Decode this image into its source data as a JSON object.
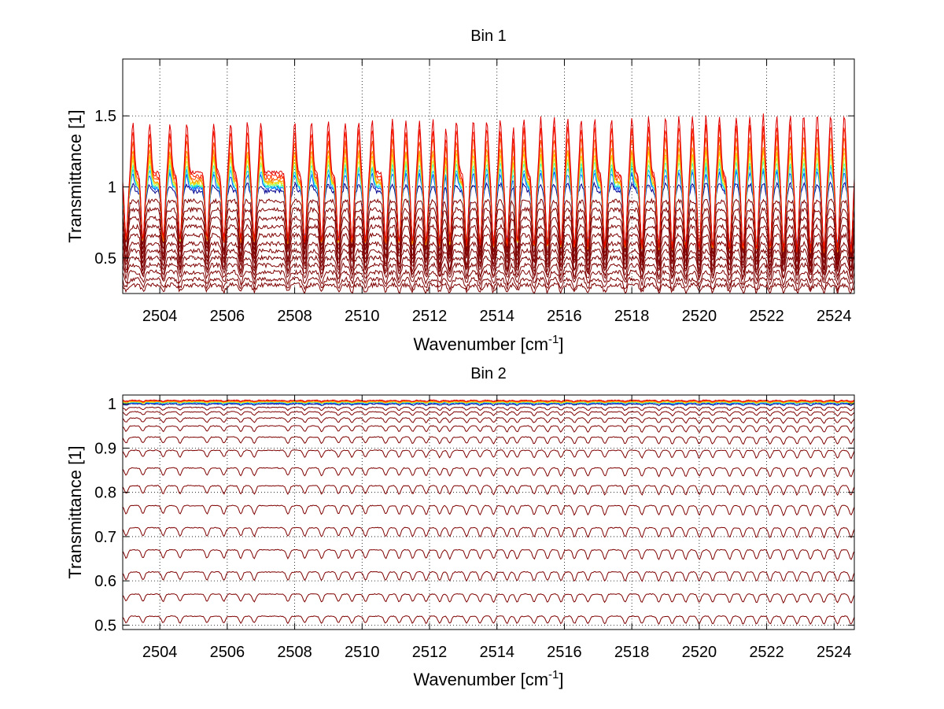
{
  "chart_data": [
    {
      "type": "line",
      "title": "Bin 1",
      "xlabel": "Wavenumber [cm",
      "xlabel_sup": "-1",
      "xlabel_end": "]",
      "ylabel": "Transmittance [1]",
      "xlim": [
        2502.9,
        2524.6
      ],
      "ylim": [
        0.25,
        1.9
      ],
      "xticks": [
        2504,
        2506,
        2508,
        2510,
        2512,
        2514,
        2516,
        2518,
        2520,
        2522,
        2524
      ],
      "yticks": [
        0.5,
        1,
        1.5
      ],
      "ytick_labels": [
        "0.5",
        "1",
        "1.5"
      ],
      "grid": "dotted",
      "legend": "none",
      "absorption_lines": [
        2503.0,
        2503.5,
        2504.1,
        2504.6,
        2505.4,
        2505.9,
        2506.4,
        2506.8,
        2507.8,
        2508.3,
        2508.8,
        2509.3,
        2509.7,
        2510.1,
        2510.7,
        2511.1,
        2511.5,
        2511.9,
        2512.3,
        2512.6,
        2513.1,
        2513.5,
        2513.9,
        2514.3,
        2514.6,
        2515.1,
        2515.5,
        2515.9,
        2516.3,
        2516.7,
        2517.2,
        2517.8,
        2518.3,
        2518.8,
        2519.2,
        2519.6,
        2520.0,
        2520.4,
        2520.9,
        2521.3,
        2521.7,
        2522.1,
        2522.5,
        2522.9,
        2523.3,
        2523.7,
        2524.1,
        2524.5
      ],
      "series": [
        {
          "baseline": 0.31,
          "depth": 0.06,
          "color": "#7f0000"
        },
        {
          "baseline": 0.35,
          "depth": 0.08,
          "color": "#7f0000"
        },
        {
          "baseline": 0.4,
          "depth": 0.1,
          "color": "#7f0000"
        },
        {
          "baseline": 0.45,
          "depth": 0.12,
          "color": "#7f0000"
        },
        {
          "baseline": 0.5,
          "depth": 0.15,
          "color": "#7f0000"
        },
        {
          "baseline": 0.55,
          "depth": 0.18,
          "color": "#7f0000"
        },
        {
          "baseline": 0.6,
          "depth": 0.22,
          "color": "#7f0000"
        },
        {
          "baseline": 0.66,
          "depth": 0.26,
          "color": "#7f0000"
        },
        {
          "baseline": 0.72,
          "depth": 0.3,
          "color": "#7f0000"
        },
        {
          "baseline": 0.78,
          "depth": 0.34,
          "color": "#7f0000"
        },
        {
          "baseline": 0.84,
          "depth": 0.38,
          "color": "#7f0000"
        },
        {
          "baseline": 0.9,
          "depth": 0.42,
          "color": "#7f0000"
        },
        {
          "baseline": 0.97,
          "depth": 0.46,
          "color": "#00008f"
        },
        {
          "baseline": 0.99,
          "depth": 0.48,
          "color": "#0050ff"
        },
        {
          "baseline": 1.0,
          "depth": 0.5,
          "color": "#00c0ff"
        },
        {
          "baseline": 1.01,
          "depth": 0.52,
          "color": "#40ffbf"
        },
        {
          "baseline": 1.02,
          "depth": 0.54,
          "color": "#bfff40"
        },
        {
          "baseline": 1.03,
          "depth": 0.56,
          "color": "#ffd000"
        },
        {
          "baseline": 1.04,
          "depth": 0.58,
          "color": "#ff9000"
        },
        {
          "baseline": 1.06,
          "depth": 0.6,
          "color": "#ff5000"
        },
        {
          "baseline": 1.08,
          "depth": 0.62,
          "color": "#ff2000"
        },
        {
          "baseline": 1.1,
          "depth": 0.64,
          "color": "#e00000"
        }
      ]
    },
    {
      "type": "line",
      "title": "Bin 2",
      "xlabel": "Wavenumber [cm",
      "xlabel_sup": "-1",
      "xlabel_end": "]",
      "ylabel": "Transmittance [1]",
      "xlim": [
        2502.9,
        2524.6
      ],
      "ylim": [
        0.49,
        1.02
      ],
      "xticks": [
        2504,
        2506,
        2508,
        2510,
        2512,
        2514,
        2516,
        2518,
        2520,
        2522,
        2524
      ],
      "yticks": [
        0.5,
        0.6,
        0.7,
        0.8,
        0.9,
        1.0
      ],
      "ytick_labels": [
        "0.5",
        "0.6",
        "0.7",
        "0.8",
        "0.9",
        "1"
      ],
      "grid": "dotted",
      "legend": "none",
      "absorption_lines": [
        2503.0,
        2503.5,
        2504.1,
        2504.6,
        2505.4,
        2505.9,
        2506.4,
        2506.8,
        2507.8,
        2508.3,
        2508.8,
        2509.3,
        2509.7,
        2510.1,
        2510.7,
        2511.1,
        2511.5,
        2511.9,
        2512.3,
        2512.6,
        2513.1,
        2513.5,
        2513.9,
        2514.3,
        2514.6,
        2515.1,
        2515.5,
        2515.9,
        2516.3,
        2516.7,
        2517.2,
        2517.8,
        2518.3,
        2518.8,
        2519.2,
        2519.6,
        2520.0,
        2520.4,
        2520.9,
        2521.3,
        2521.7,
        2522.1,
        2522.5,
        2522.9,
        2523.3,
        2523.7,
        2524.1,
        2524.5
      ],
      "series": [
        {
          "baseline": 0.52,
          "depth": 0.02,
          "color": "#7f0000"
        },
        {
          "baseline": 0.57,
          "depth": 0.022,
          "color": "#7f0000"
        },
        {
          "baseline": 0.62,
          "depth": 0.024,
          "color": "#7f0000"
        },
        {
          "baseline": 0.67,
          "depth": 0.025,
          "color": "#7f0000"
        },
        {
          "baseline": 0.72,
          "depth": 0.025,
          "color": "#7f0000"
        },
        {
          "baseline": 0.77,
          "depth": 0.025,
          "color": "#7f0000"
        },
        {
          "baseline": 0.815,
          "depth": 0.024,
          "color": "#7f0000"
        },
        {
          "baseline": 0.855,
          "depth": 0.022,
          "color": "#7f0000"
        },
        {
          "baseline": 0.895,
          "depth": 0.02,
          "color": "#7f0000"
        },
        {
          "baseline": 0.925,
          "depth": 0.018,
          "color": "#7f0000"
        },
        {
          "baseline": 0.95,
          "depth": 0.016,
          "color": "#7f0000"
        },
        {
          "baseline": 0.968,
          "depth": 0.013,
          "color": "#7f0000"
        },
        {
          "baseline": 0.982,
          "depth": 0.01,
          "color": "#7f0000"
        },
        {
          "baseline": 0.992,
          "depth": 0.008,
          "color": "#7f0000"
        },
        {
          "baseline": 1.0,
          "depth": 0.004,
          "color": "#00008f"
        },
        {
          "baseline": 1.002,
          "depth": 0.003,
          "color": "#0050ff"
        },
        {
          "baseline": 1.003,
          "depth": 0.003,
          "color": "#00c0ff"
        },
        {
          "baseline": 1.004,
          "depth": 0.003,
          "color": "#bfff40"
        },
        {
          "baseline": 1.005,
          "depth": 0.003,
          "color": "#ffd000"
        },
        {
          "baseline": 1.006,
          "depth": 0.003,
          "color": "#ff9000"
        },
        {
          "baseline": 1.007,
          "depth": 0.003,
          "color": "#ff4000"
        },
        {
          "baseline": 1.008,
          "depth": 0.003,
          "color": "#e00000"
        }
      ]
    }
  ]
}
